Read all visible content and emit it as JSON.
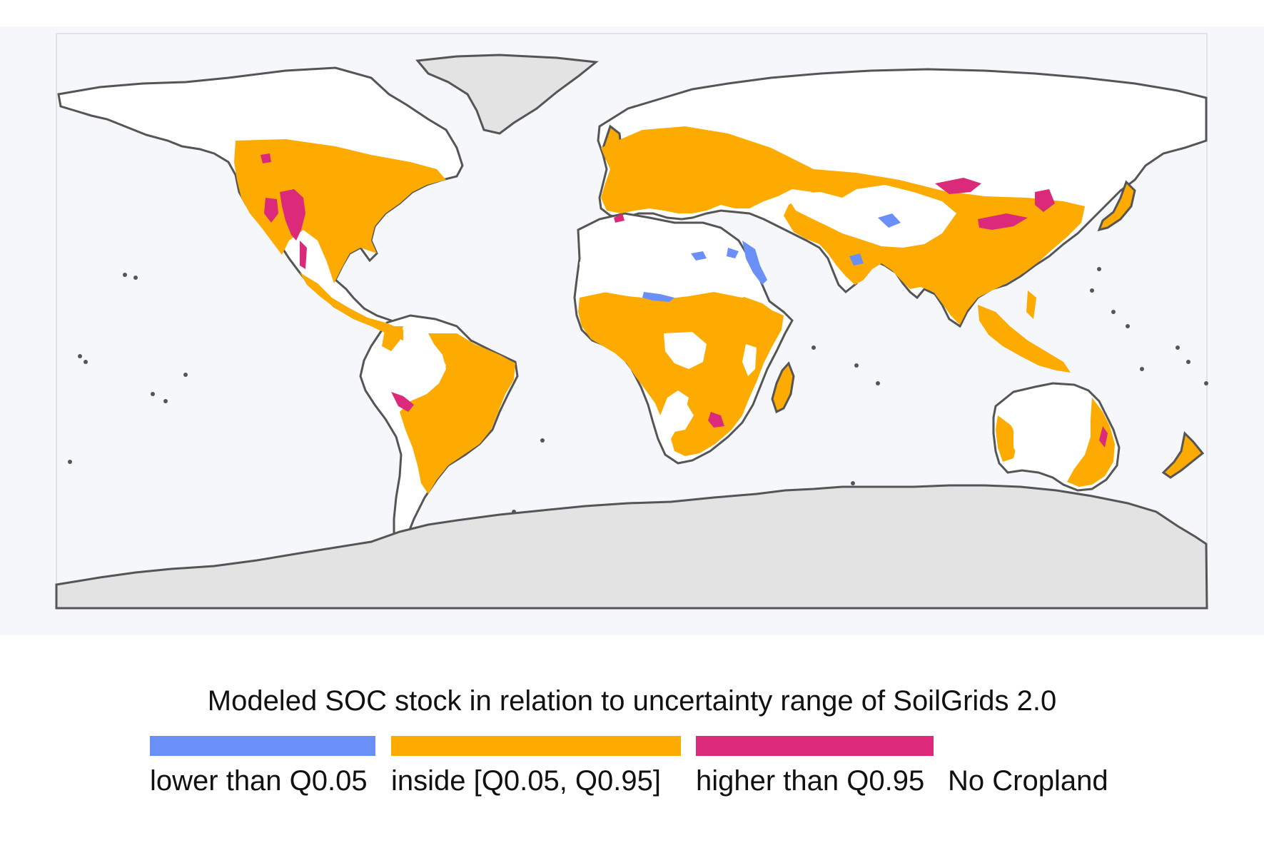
{
  "map": {
    "title": "Modeled SOC stock in relation to uncertainty range of SoilGrids 2.0",
    "projection": "equirectangular (plate carrée)",
    "colors": {
      "ocean": "#f6f7fb",
      "no_cropland_land": "#ffffff",
      "ice": "#e3e3e3",
      "coastline": "#555555",
      "lower": "#6a8ff7",
      "inside": "#fdab00",
      "higher": "#dc2a7b"
    },
    "legend": {
      "items": [
        {
          "label": "lower than Q0.05",
          "color": "#6a8ff7"
        },
        {
          "label": "inside [Q0.05, Q0.95]",
          "color": "#fdab00"
        },
        {
          "label": "higher than Q0.95",
          "color": "#dc2a7b"
        },
        {
          "label": "No Cropland",
          "color": "#ffffff"
        }
      ]
    }
  }
}
